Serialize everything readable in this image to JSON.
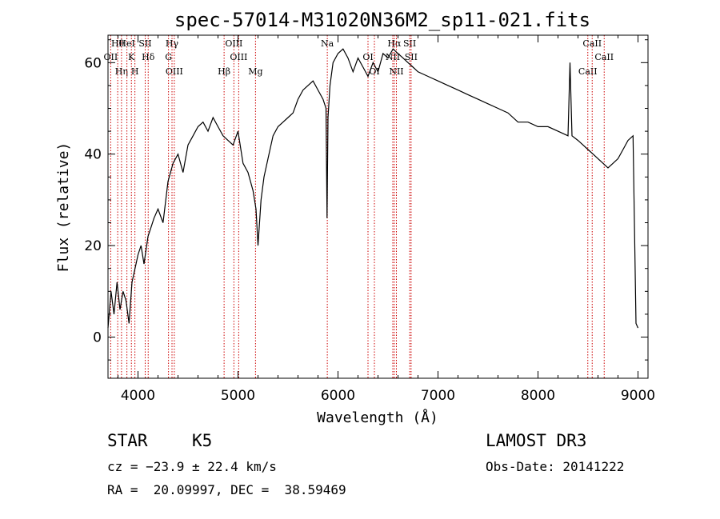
{
  "chart_data": {
    "type": "line",
    "title": "spec-57014-M31020N36M2_sp11-021.fits",
    "xlabel": "Wavelength (Å)",
    "ylabel": "Flux (relative)",
    "xlim": [
      3700,
      9100
    ],
    "ylim": [
      -9,
      66
    ],
    "xticks": [
      4000,
      5000,
      6000,
      7000,
      8000,
      9000
    ],
    "yticks": [
      0,
      20,
      40,
      60
    ],
    "grid": false,
    "series": [
      {
        "name": "flux",
        "x": [
          3700,
          3730,
          3760,
          3790,
          3820,
          3850,
          3880,
          3910,
          3940,
          3970,
          4000,
          4030,
          4060,
          4100,
          4130,
          4160,
          4200,
          4250,
          4300,
          4350,
          4400,
          4450,
          4500,
          4550,
          4600,
          4650,
          4700,
          4750,
          4800,
          4850,
          4900,
          4950,
          5000,
          5050,
          5100,
          5150,
          5180,
          5200,
          5230,
          5260,
          5300,
          5350,
          5400,
          5450,
          5500,
          5550,
          5600,
          5650,
          5700,
          5750,
          5800,
          5850,
          5880,
          5890,
          5900,
          5920,
          5950,
          6000,
          6050,
          6100,
          6150,
          6200,
          6250,
          6300,
          6350,
          6400,
          6450,
          6500,
          6550,
          6600,
          6650,
          6700,
          6750,
          6800,
          6900,
          7000,
          7100,
          7200,
          7300,
          7400,
          7500,
          7600,
          7700,
          7800,
          7900,
          8000,
          8100,
          8200,
          8300,
          8320,
          8340,
          8400,
          8450,
          8500,
          8550,
          8600,
          8650,
          8700,
          8750,
          8800,
          8850,
          8900,
          8950,
          8980,
          9000
        ],
        "y": [
          2,
          10,
          5,
          12,
          6,
          10,
          8,
          3,
          12,
          15,
          18,
          20,
          16,
          22,
          24,
          26,
          28,
          25,
          34,
          38,
          40,
          36,
          42,
          44,
          46,
          47,
          45,
          48,
          46,
          44,
          43,
          42,
          45,
          38,
          36,
          32,
          28,
          20,
          30,
          35,
          39,
          44,
          46,
          47,
          48,
          49,
          52,
          54,
          55,
          56,
          54,
          52,
          50,
          26,
          48,
          55,
          60,
          62,
          63,
          61,
          58,
          61,
          59,
          57,
          60,
          58,
          62,
          61,
          63,
          62,
          61,
          60,
          59,
          58,
          57,
          56,
          55,
          54,
          53,
          52,
          51,
          50,
          49,
          47,
          47,
          46,
          46,
          45,
          44,
          60,
          44,
          43,
          42,
          41,
          40,
          39,
          38,
          37,
          38,
          39,
          41,
          43,
          44,
          3,
          2
        ]
      }
    ],
    "annotations": [
      {
        "label": "Hθ",
        "x": 3797
      },
      {
        "label": "OII",
        "x": 3727
      },
      {
        "label": "Hη",
        "x": 3835
      },
      {
        "label": "HeI",
        "x": 3889
      },
      {
        "label": "K",
        "x": 3934
      },
      {
        "label": "H",
        "x": 3969
      },
      {
        "label": "SII",
        "x": 4072
      },
      {
        "label": "Hδ",
        "x": 4102
      },
      {
        "label": "OIII",
        "x": 4363
      },
      {
        "label": "Hγ",
        "x": 4340
      },
      {
        "label": "G",
        "x": 4305
      },
      {
        "label": "Hβ",
        "x": 4861
      },
      {
        "label": "OIII",
        "x": 4959
      },
      {
        "label": "OIII",
        "x": 5007
      },
      {
        "label": "Mg",
        "x": 5175
      },
      {
        "label": "Na",
        "x": 5893
      },
      {
        "label": "OI",
        "x": 6300
      },
      {
        "label": "OI",
        "x": 6364
      },
      {
        "label": "Hα",
        "x": 6563
      },
      {
        "label": "NII",
        "x": 6548
      },
      {
        "label": "NII",
        "x": 6584
      },
      {
        "label": "SII",
        "x": 6717
      },
      {
        "label": "SII",
        "x": 6731
      },
      {
        "label": "CaII",
        "x": 8498
      },
      {
        "label": "CaII",
        "x": 8542
      },
      {
        "label": "CaII",
        "x": 8662
      }
    ]
  },
  "info": {
    "class": "STAR",
    "subclass": "K5",
    "survey": "LAMOST DR3",
    "cz": "cz = −23.9 ± 22.4 km/s",
    "obs_date": "Obs-Date: 20141222",
    "coords": "RA =  20.09997, DEC =  38.59469"
  },
  "colors": {
    "axis": "#000000",
    "spectrum": "#000000",
    "lines": "#cc0000"
  }
}
